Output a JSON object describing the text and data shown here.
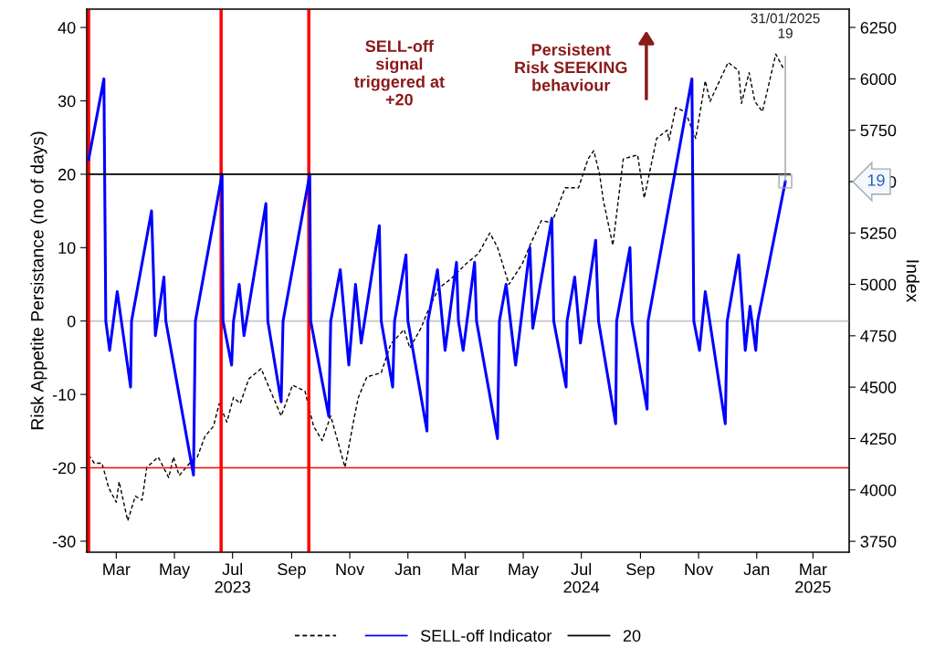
{
  "chart_data": {
    "type": "line",
    "ylabel": "Risk Appetite Persistance (no of days)",
    "y2label": "Index",
    "xlim": [
      "2023-01-29",
      "2025-04-08"
    ],
    "xticks": [
      {
        "value": "2023-03-01",
        "label": "Mar"
      },
      {
        "value": "2023-05-01",
        "label": "May"
      },
      {
        "value": "2023-07-01",
        "label": "Jul\n2023"
      },
      {
        "value": "2023-09-01",
        "label": "Sep"
      },
      {
        "value": "2023-11-01",
        "label": "Nov"
      },
      {
        "value": "2024-01-01",
        "label": "Jan"
      },
      {
        "value": "2024-03-01",
        "label": "Mar"
      },
      {
        "value": "2024-05-01",
        "label": "May"
      },
      {
        "value": "2024-07-01",
        "label": "Jul\n2024"
      },
      {
        "value": "2024-09-01",
        "label": "Sep"
      },
      {
        "value": "2024-11-01",
        "label": "Nov"
      },
      {
        "value": "2025-01-01",
        "label": "Jan"
      },
      {
        "value": "2025-03-01",
        "label": "Mar\n2025"
      }
    ],
    "ylim": [
      -31.5,
      42.5
    ],
    "yticks": [
      -30,
      -20,
      -10,
      0,
      10,
      20,
      30,
      40
    ],
    "y2lim": [
      3697,
      6339
    ],
    "y2ticks": [
      3750,
      4000,
      4250,
      4500,
      4750,
      5000,
      5250,
      5500,
      5750,
      6000,
      6250
    ],
    "legend": "bottom",
    "grid": false,
    "series": [
      {
        "type": "line",
        "axis": "y2",
        "line_style": "dashed",
        "color": "#000000",
        "x": [
          "2023-01-31",
          "2023-02-06",
          "2023-02-14",
          "2023-02-21",
          "2023-03-01",
          "2023-03-04",
          "2023-03-13",
          "2023-03-21",
          "2023-03-28",
          "2023-04-02",
          "2023-04-14",
          "2023-04-25",
          "2023-04-30",
          "2023-05-06",
          "2023-05-17",
          "2023-05-25",
          "2023-06-02",
          "2023-06-11",
          "2023-06-17",
          "2023-06-25",
          "2023-07-02",
          "2023-07-09",
          "2023-07-18",
          "2023-07-31",
          "2023-08-10",
          "2023-08-21",
          "2023-09-02",
          "2023-09-15",
          "2023-09-24",
          "2023-10-03",
          "2023-10-12",
          "2023-10-27",
          "2023-11-06",
          "2023-11-10",
          "2023-11-19",
          "2023-12-04",
          "2023-12-14",
          "2023-12-28",
          "2024-01-03",
          "2024-01-15",
          "2024-01-21",
          "2024-02-02",
          "2024-02-16",
          "2024-03-02",
          "2024-03-15",
          "2024-03-27",
          "2024-04-04",
          "2024-04-16",
          "2024-04-30",
          "2024-05-09",
          "2024-05-20",
          "2024-05-31",
          "2024-06-14",
          "2024-06-28",
          "2024-07-08",
          "2024-07-14",
          "2024-07-20",
          "2024-07-24",
          "2024-08-03",
          "2024-08-14",
          "2024-08-29",
          "2024-09-05",
          "2024-09-18",
          "2024-09-29",
          "2024-10-01",
          "2024-10-08",
          "2024-10-18",
          "2024-10-29",
          "2024-11-08",
          "2024-11-13",
          "2024-12-02",
          "2024-12-13",
          "2024-12-16",
          "2024-12-24",
          "2024-12-30",
          "2025-01-07",
          "2025-01-21",
          "2025-01-29"
        ],
        "values": [
          4170,
          4130,
          4130,
          4010,
          3940,
          4040,
          3850,
          3970,
          3950,
          4110,
          4160,
          4060,
          4160,
          4070,
          4130,
          4160,
          4260,
          4310,
          4420,
          4330,
          4450,
          4420,
          4540,
          4590,
          4480,
          4360,
          4510,
          4480,
          4310,
          4240,
          4360,
          4110,
          4360,
          4450,
          4550,
          4570,
          4710,
          4780,
          4690,
          4790,
          4860,
          4980,
          5030,
          5100,
          5150,
          5250,
          5180,
          5000,
          5100,
          5200,
          5310,
          5300,
          5470,
          5470,
          5610,
          5650,
          5540,
          5410,
          5190,
          5610,
          5630,
          5420,
          5710,
          5750,
          5700,
          5860,
          5840,
          5710,
          5990,
          5890,
          6080,
          6040,
          5880,
          6030,
          5890,
          5840,
          6120,
          6050
        ]
      },
      {
        "name": "SELL-off Indicator",
        "color": "#0000ff",
        "x": [
          "2023-01-31",
          "2023-02-16",
          "2023-02-18",
          "2023-02-22",
          "2023-03-02",
          "2023-03-16",
          "2023-03-17",
          "2023-04-07",
          "2023-04-11",
          "2023-04-20",
          "2023-04-22",
          "2023-05-21",
          "2023-05-23",
          "2023-06-20",
          "2023-06-21",
          "2023-06-30",
          "2023-07-02",
          "2023-07-08",
          "2023-07-13",
          "2023-08-05",
          "2023-08-07",
          "2023-08-21",
          "2023-08-23",
          "2023-09-20",
          "2023-09-21",
          "2023-10-10",
          "2023-10-12",
          "2023-10-22",
          "2023-10-31",
          "2023-11-07",
          "2023-11-13",
          "2023-12-02",
          "2023-12-04",
          "2023-12-16",
          "2023-12-18",
          "2023-12-30",
          "2024-01-01",
          "2024-01-21",
          "2024-01-22",
          "2024-02-01",
          "2024-02-09",
          "2024-02-21",
          "2024-02-23",
          "2024-02-28",
          "2024-03-11",
          "2024-03-13",
          "2024-04-04",
          "2024-04-06",
          "2024-04-13",
          "2024-04-23",
          "2024-05-08",
          "2024-05-11",
          "2024-05-31",
          "2024-06-02",
          "2024-06-15",
          "2024-06-16",
          "2024-06-24",
          "2024-06-30",
          "2024-07-16",
          "2024-07-19",
          "2024-08-06",
          "2024-08-07",
          "2024-08-21",
          "2024-08-23",
          "2024-09-08",
          "2024-09-09",
          "2024-10-25",
          "2024-10-27",
          "2024-11-02",
          "2024-11-08",
          "2024-11-29",
          "2024-12-01",
          "2024-12-13",
          "2024-12-20",
          "2024-12-25",
          "2024-12-31",
          "2025-01-02",
          "2025-01-31"
        ],
        "values": [
          22,
          33,
          0,
          -4,
          4,
          -9,
          0,
          15,
          -2,
          6,
          0,
          -21,
          0,
          20,
          0,
          -6,
          0,
          5,
          -2,
          16,
          0,
          -11,
          0,
          20,
          0,
          -13,
          0,
          7,
          -6,
          5,
          -3,
          13,
          0,
          -9,
          0,
          9,
          0,
          -15,
          0,
          7,
          -4,
          8,
          0,
          -4,
          8,
          0,
          -16,
          0,
          5,
          -6,
          10,
          -1,
          14,
          0,
          -9,
          0,
          6,
          -3,
          11,
          0,
          -14,
          0,
          10,
          0,
          -12,
          0,
          33,
          0,
          -4,
          4,
          -14,
          0,
          9,
          -4,
          2,
          -4,
          0,
          19
        ]
      },
      {
        "name": "20",
        "color": "#000000",
        "x": [
          "2023-01-31",
          "2025-02-05"
        ],
        "values": [
          20,
          20
        ]
      }
    ],
    "ref_lines": [
      {
        "axis": "x",
        "value": "2023-01-31",
        "color": "#ff0000"
      },
      {
        "axis": "x",
        "value": "2023-06-19",
        "color": "#ff0000"
      },
      {
        "axis": "x",
        "value": "2023-09-19",
        "color": "#ff0000"
      },
      {
        "axis": "y",
        "value": -20,
        "color": "#ff0000"
      },
      {
        "axis": "y",
        "value": 0,
        "color": "#cccccc"
      }
    ],
    "annotations": [
      "SELL-off\nsignal\ntriggered at\n+20",
      "Persistent\nRisk SEEKING\nbehaviour",
      {
        "text": "31/01/2025\n19",
        "x": "2025-01-31",
        "y": 19
      },
      "19"
    ]
  }
}
